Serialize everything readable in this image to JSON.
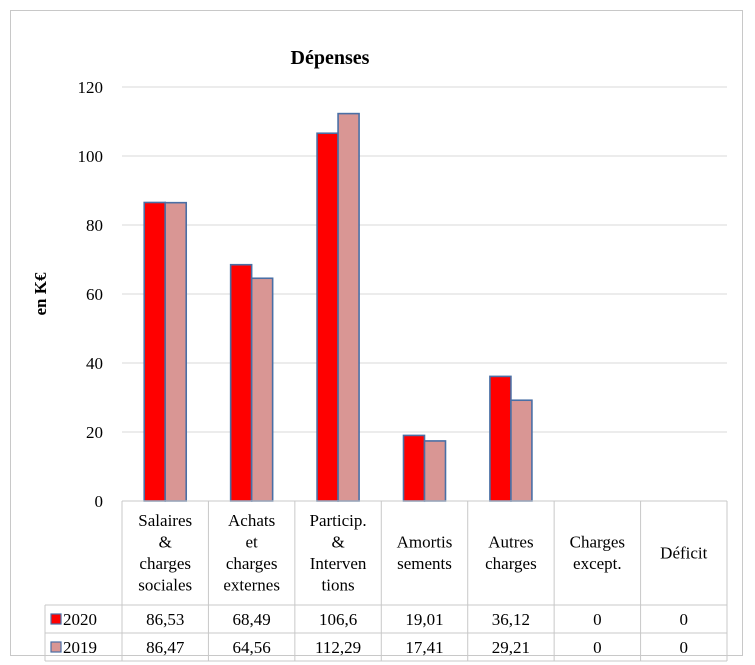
{
  "chart_data": {
    "type": "bar",
    "title": "Dépenses",
    "ylabel": "en K€",
    "xlabel": "",
    "ylim": [
      0,
      120
    ],
    "yticks": [
      0,
      20,
      40,
      60,
      80,
      100,
      120
    ],
    "grid": true,
    "categories": [
      [
        "Salaires",
        "&",
        "charges",
        "sociales"
      ],
      [
        "Achats",
        "et",
        "charges",
        "externes"
      ],
      [
        "Particip.",
        "&",
        "Interven",
        "tions"
      ],
      [
        "Amortis",
        "sements"
      ],
      [
        "Autres",
        "charges"
      ],
      [
        "Charges",
        "except."
      ],
      [
        "Déficit"
      ]
    ],
    "series": [
      {
        "name": "2020",
        "color": "#ff0000",
        "values": [
          86.53,
          68.49,
          106.6,
          19.01,
          36.12,
          0,
          0
        ],
        "labels": [
          "86,53",
          "68,49",
          "106,6",
          "19,01",
          "36,12",
          "0",
          "0"
        ]
      },
      {
        "name": "2019",
        "color": "#d99694",
        "values": [
          86.47,
          64.56,
          112.29,
          17.41,
          29.21,
          0,
          0
        ],
        "labels": [
          "86,47",
          "64,56",
          "112,29",
          "17,41",
          "29,21",
          "0",
          "0"
        ]
      }
    ],
    "legend": "data-table"
  }
}
